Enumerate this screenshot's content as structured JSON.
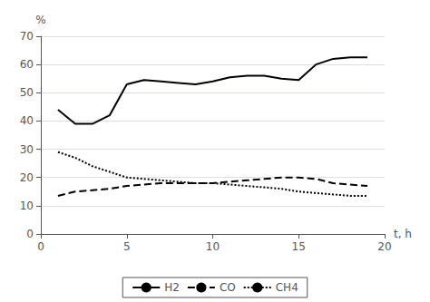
{
  "chart_data": {
    "type": "line",
    "x": [
      1,
      2,
      3,
      4,
      5,
      6,
      7,
      8,
      9,
      10,
      11,
      12,
      13,
      14,
      15,
      16,
      17,
      18,
      19
    ],
    "series": [
      {
        "name": "H2",
        "color": "#000000",
        "line_style": "solid",
        "values": [
          44,
          39,
          39,
          42,
          53,
          54.5,
          54,
          53.5,
          53,
          54,
          55.5,
          56,
          56,
          55,
          54.5,
          60,
          62,
          62.5,
          62.5
        ]
      },
      {
        "name": "CO",
        "color": "#000000",
        "line_style": "dashed",
        "values": [
          13.5,
          15,
          15.5,
          16,
          17,
          17.5,
          18,
          18,
          18,
          18,
          18.5,
          19,
          19.5,
          20,
          20,
          19.5,
          18,
          17.5,
          17
        ]
      },
      {
        "name": "CH4",
        "color": "#000000",
        "line_style": "dotted",
        "values": [
          29,
          27,
          24,
          22,
          20,
          19.5,
          19,
          18.5,
          18,
          18,
          17.5,
          17,
          16.5,
          16,
          15,
          14.5,
          14,
          13.5,
          13.5
        ]
      }
    ],
    "xlabel": "t, h",
    "ylabel": "%",
    "xlim": [
      0,
      20
    ],
    "ylim": [
      0,
      70
    ],
    "xticks": [
      0,
      5,
      10,
      15,
      20
    ],
    "yticks": [
      0,
      10,
      20,
      30,
      40,
      50,
      60,
      70
    ],
    "grid": "y",
    "legend": "bottom"
  }
}
